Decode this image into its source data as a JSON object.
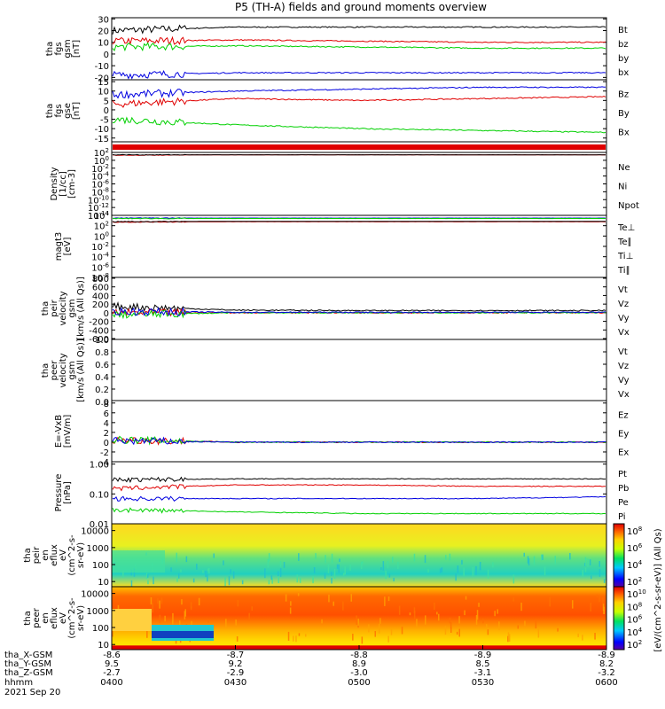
{
  "title": "P5 (TH-A) fields and ground moments overview",
  "colors": {
    "black": "#000000",
    "red": "#e00000",
    "green": "#00d000",
    "blue": "#0000e0"
  },
  "x_axis": {
    "tick_rows": [
      {
        "label": "tha_X-GSM",
        "values": [
          "-8.6",
          "-8.7",
          "-8.8",
          "-8.9",
          "-8.9"
        ]
      },
      {
        "label": "tha_Y-GSM",
        "values": [
          "9.5",
          "9.2",
          "8.9",
          "8.5",
          "8.2"
        ]
      },
      {
        "label": "tha_Z-GSM",
        "values": [
          "-2.7",
          "-2.9",
          "-3.0",
          "-3.1",
          "-3.2"
        ]
      },
      {
        "label": "hhmm",
        "values": [
          "0400",
          "0430",
          "0500",
          "0530",
          "0600"
        ]
      }
    ],
    "date": "2021 Sep 20"
  },
  "chart_data": [
    {
      "id": "fgs_gsm",
      "type": "line",
      "ylabel": [
        "tha",
        "fgs",
        "gsm",
        "[nT]"
      ],
      "yticks": [
        "30",
        "20",
        "10",
        "0",
        "-10",
        "-20"
      ],
      "ylim": [
        -22,
        31
      ],
      "x": [
        "0400",
        "0430",
        "0500",
        "0530",
        "0600"
      ],
      "series": [
        {
          "name": "Bt",
          "color": "black",
          "values": [
            20,
            23,
            23,
            23,
            23
          ]
        },
        {
          "name": "bz",
          "color": "red",
          "values": [
            11,
            12,
            11,
            10,
            10
          ]
        },
        {
          "name": "by",
          "color": "green",
          "values": [
            6,
            7,
            6,
            5,
            5
          ]
        },
        {
          "name": "bx",
          "color": "blue",
          "values": [
            -18,
            -16,
            -16,
            -16,
            -16
          ]
        }
      ]
    },
    {
      "id": "fgs_gse",
      "type": "line",
      "ylabel": [
        "tha",
        "fgs",
        "gse",
        "[nT]"
      ],
      "yticks": [
        "15",
        "10",
        "5",
        "0",
        "-5",
        "-10",
        "-15"
      ],
      "ylim": [
        -17,
        16
      ],
      "x": [
        "0400",
        "0430",
        "0500",
        "0530",
        "0600"
      ],
      "series": [
        {
          "name": "Bz",
          "color": "red",
          "values": [
            3,
            6,
            5,
            6,
            7
          ]
        },
        {
          "name": "By",
          "color": "green",
          "values": [
            -5,
            -8,
            -10,
            -11,
            -12
          ]
        },
        {
          "name": "Bx",
          "color": "blue",
          "values": [
            8,
            10,
            11,
            12,
            12
          ]
        }
      ]
    },
    {
      "id": "density",
      "type": "line",
      "ylabel": [
        "Density",
        "[1/cc]",
        "[cm-3]"
      ],
      "yticks": [
        "10^2",
        "10^0",
        "10^-2",
        "10^-4",
        "10^-6",
        "10^-8",
        "10^-10",
        "10^-12",
        "10^-14"
      ],
      "ylim": [
        1e-14,
        100
      ],
      "yscale": "log",
      "series": [
        {
          "name": "Ne",
          "color": "red",
          "values": [
            20,
            25,
            25,
            25,
            25
          ]
        },
        {
          "name": "Ni",
          "color": "black",
          "values": [
            25,
            25,
            25,
            25,
            25
          ]
        },
        {
          "name": "Npot",
          "color": "blue",
          "values": []
        }
      ]
    },
    {
      "id": "temperature",
      "type": "line",
      "ylabel": [
        "magt3",
        "[eV]"
      ],
      "yticks": [
        "10^4",
        "10^2",
        "10^0",
        "10^-2",
        "10^-4",
        "10^-6",
        "10^-8"
      ],
      "ylim": [
        1e-08,
        10000
      ],
      "yscale": "log",
      "series": [
        {
          "name": "Te⊥",
          "color": "red",
          "values": [
            500,
            600,
            600,
            600,
            600
          ]
        },
        {
          "name": "Te∥",
          "color": "black",
          "values": [
            600,
            700,
            700,
            700,
            700
          ]
        },
        {
          "name": "Ti⊥",
          "color": "blue",
          "values": [
            3000,
            3000,
            3000,
            3000,
            3000
          ]
        },
        {
          "name": "Ti∥",
          "color": "green",
          "values": [
            2500,
            2500,
            2500,
            2500,
            2500
          ]
        }
      ]
    },
    {
      "id": "peir_velocity",
      "type": "line",
      "ylabel": [
        "tha",
        "peir",
        "velocity",
        "gsm",
        "[km/s (All Qs)]"
      ],
      "yticks": [
        "800",
        "600",
        "400",
        "200",
        "0",
        "-200",
        "-400",
        "-600"
      ],
      "ylim": [
        -620,
        820
      ],
      "series": [
        {
          "name": "Vt",
          "color": "black",
          "values": [
            150,
            60,
            50,
            50,
            50
          ]
        },
        {
          "name": "Vz",
          "color": "red",
          "values": [
            0,
            0,
            0,
            0,
            0
          ]
        },
        {
          "name": "Vy",
          "color": "green",
          "values": [
            -50,
            0,
            0,
            0,
            0
          ]
        },
        {
          "name": "Vx",
          "color": "blue",
          "values": [
            30,
            10,
            10,
            10,
            10
          ]
        }
      ]
    },
    {
      "id": "peer_velocity",
      "type": "line",
      "ylabel": [
        "tha",
        "peer",
        "velocity",
        "gsm",
        "[km/s (All Qs)]"
      ],
      "yticks": [
        "1.0",
        "0.8",
        "0.6",
        "0.4",
        "0.2",
        "0.0"
      ],
      "ylim": [
        0,
        1
      ],
      "series": [
        {
          "name": "Vt",
          "color": "black",
          "values": []
        },
        {
          "name": "Vz",
          "color": "red",
          "values": []
        },
        {
          "name": "Vy",
          "color": "green",
          "values": []
        },
        {
          "name": "Vx",
          "color": "blue",
          "values": []
        }
      ]
    },
    {
      "id": "efield",
      "type": "line",
      "ylabel": [
        "E=-VxB",
        "[mV/m]"
      ],
      "yticks": [
        "8",
        "6",
        "4",
        "2",
        "0",
        "-2",
        "-4"
      ],
      "ylim": [
        -4,
        8.5
      ],
      "series": [
        {
          "name": "Ez",
          "color": "red",
          "values": [
            0.5,
            0,
            0,
            0,
            0
          ]
        },
        {
          "name": "Ey",
          "color": "green",
          "values": [
            0.5,
            0,
            0,
            0,
            0
          ]
        },
        {
          "name": "Ex",
          "color": "blue",
          "values": [
            0.3,
            0,
            0,
            0,
            0
          ]
        }
      ]
    },
    {
      "id": "pressure",
      "type": "line",
      "ylabel": [
        "Pressure",
        "[nPa]"
      ],
      "yticks": [
        "1.00",
        "0.10",
        "0.01"
      ],
      "ylim": [
        0.01,
        1.2
      ],
      "yscale": "log",
      "series": [
        {
          "name": "Pt",
          "color": "black",
          "values": [
            0.3,
            0.32,
            0.32,
            0.32,
            0.32
          ]
        },
        {
          "name": "Pb",
          "color": "red",
          "values": [
            0.15,
            0.2,
            0.2,
            0.18,
            0.18
          ]
        },
        {
          "name": "Pe",
          "color": "blue",
          "values": [
            0.07,
            0.07,
            0.07,
            0.07,
            0.08
          ]
        },
        {
          "name": "Pi",
          "color": "green",
          "values": [
            0.03,
            0.025,
            0.022,
            0.022,
            0.022
          ]
        }
      ]
    },
    {
      "id": "peir_en_eflux",
      "type": "heatmap",
      "ylabel": [
        "tha",
        "peir",
        "en",
        "eflux",
        "eV",
        "(cm^2-s-",
        "sr-eV)"
      ],
      "yticks": [
        "10000",
        "1000",
        "100",
        "10"
      ],
      "ylim": [
        5,
        25000
      ],
      "yscale": "log",
      "colorbar": {
        "ticks": [
          "10^8",
          "10^6",
          "10^4",
          "10^2"
        ],
        "label": "[eV/(cm^2-s-sr-eV)] (All Qs)"
      }
    },
    {
      "id": "peer_en_eflux",
      "type": "heatmap",
      "ylabel": [
        "tha",
        "peer",
        "en",
        "eflux",
        "eV",
        "(cm^2-s-",
        "sr-eV)"
      ],
      "yticks": [
        "10000",
        "1000",
        "100",
        "10"
      ],
      "ylim": [
        5,
        25000
      ],
      "yscale": "log",
      "colorbar": {
        "ticks": [
          "10^10",
          "10^8",
          "10^6",
          "10^4",
          "10^2"
        ],
        "label": "[eV/(cm^2-s-sr-eV)] (All Qs)"
      }
    }
  ]
}
